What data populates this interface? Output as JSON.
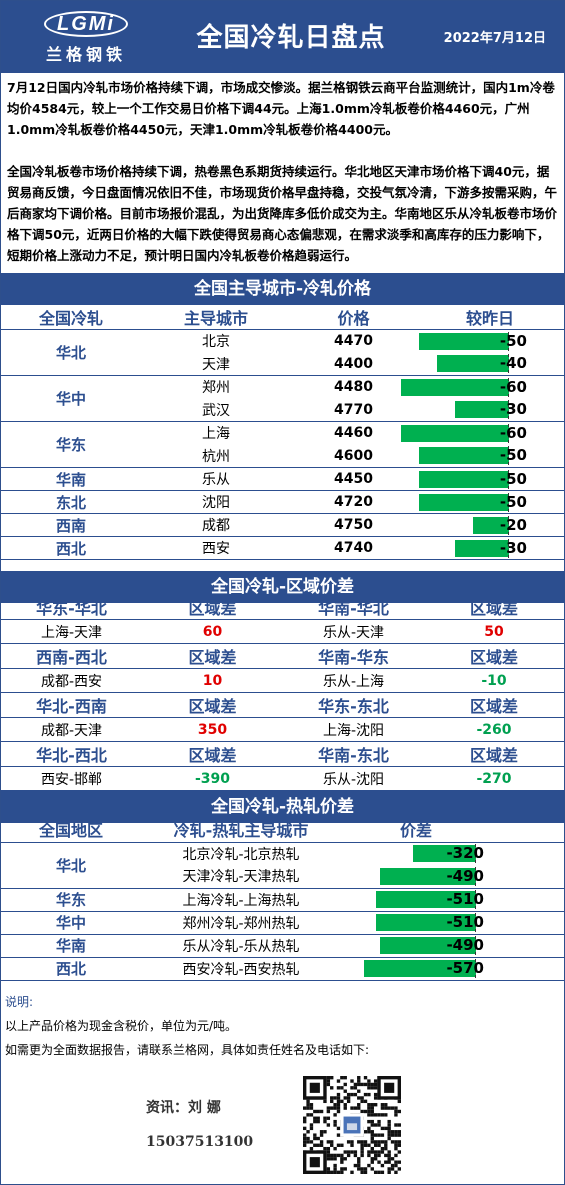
{
  "header": {
    "logo_text": "LGMi",
    "logo_cn": "兰格钢铁",
    "title": "全国冷轧日盘点",
    "date": "2022年7月12日"
  },
  "summary": {
    "p1": "7月12日国内冷轧市场价格持续下调，市场成交惨淡。据兰格钢铁云商平台监测统计，国内1m冷卷均价4584元，较上一个工作交易日价格下调44元。上海1.0mm冷轧板卷价格4460元，广州1.0mm冷轧板卷价格4450元，天津1.0mm冷轧板卷价格4400元。",
    "p2": "全国冷轧板卷市场价格持续下调，热卷黑色系期货持续运行。华北地区天津市场价格下调40元，据贸易商反馈，今日盘面情况依旧不佳，市场现货价格早盘持稳，交投气氛冷清，下游多按需采购，午后商家均下调价格。目前市场报价混乱，为出货降库多低价成交为主。华南地区乐从冷轧板卷市场价格下调50元，近两日价格的大幅下跌使得贸易商心态偏悲观，在需求淡季和高库存的压力影响下，短期价格上涨动力不足，预计明日国内冷轧板卷价格趋弱运行。"
  },
  "sections": {
    "city_price": "全国主导城市-冷轧价格",
    "spread": "全国冷轧-区域价差",
    "hot": "全国冷轧-热轧价差"
  },
  "city_table": {
    "headers": [
      "全国冷轧",
      "主导城市",
      "价格",
      "较昨日"
    ],
    "groups": [
      {
        "region": "华北",
        "rows": [
          {
            "city": "北京",
            "price": "4470",
            "change": -50
          },
          {
            "city": "天津",
            "price": "4400",
            "change": -40
          }
        ]
      },
      {
        "region": "华中",
        "rows": [
          {
            "city": "郑州",
            "price": "4480",
            "change": -60
          },
          {
            "city": "武汉",
            "price": "4770",
            "change": -30
          }
        ]
      },
      {
        "region": "华东",
        "rows": [
          {
            "city": "上海",
            "price": "4460",
            "change": -60
          },
          {
            "city": "杭州",
            "price": "4600",
            "change": -50
          }
        ]
      },
      {
        "region": "华南",
        "rows": [
          {
            "city": "乐从",
            "price": "4450",
            "change": -50
          }
        ]
      },
      {
        "region": "东北",
        "rows": [
          {
            "city": "沈阳",
            "price": "4720",
            "change": -50
          }
        ]
      },
      {
        "region": "西南",
        "rows": [
          {
            "city": "成都",
            "price": "4750",
            "change": -20
          }
        ]
      },
      {
        "region": "西北",
        "rows": [
          {
            "city": "西安",
            "price": "4740",
            "change": -30
          }
        ]
      }
    ]
  },
  "spread_table": {
    "diff_label": "区域差",
    "blocks": [
      {
        "left_title": "华东-华北",
        "left_pair": "上海-天津",
        "left_value": "60",
        "right_title": "华南-华北",
        "right_pair": "乐从-天津",
        "right_value": "50"
      },
      {
        "left_title": "西南-西北",
        "left_pair": "成都-西安",
        "left_value": "10",
        "right_title": "华南-华东",
        "right_pair": "乐从-上海",
        "right_value": "-10"
      },
      {
        "left_title": "华北-西南",
        "left_pair": "成都-天津",
        "left_value": "350",
        "right_title": "华东-东北",
        "right_pair": "上海-沈阳",
        "right_value": "-260"
      },
      {
        "left_title": "华北-西北",
        "left_pair": "西安-邯郸",
        "left_value": "-390",
        "right_title": "华南-东北",
        "right_pair": "乐从-沈阳",
        "right_value": "-270"
      }
    ]
  },
  "hot_table": {
    "headers": [
      "全国地区",
      "冷轧-热轧主导城市",
      "价差"
    ],
    "groups": [
      {
        "region": "华北",
        "rows": [
          {
            "pair": "北京冷轧-北京热轧",
            "value": -320
          },
          {
            "pair": "天津冷轧-天津热轧",
            "value": -490
          }
        ]
      },
      {
        "region": "华东",
        "rows": [
          {
            "pair": "上海冷轧-上海热轧",
            "value": -510
          }
        ]
      },
      {
        "region": "华中",
        "rows": [
          {
            "pair": "郑州冷轧-郑州热轧",
            "value": -510
          }
        ]
      },
      {
        "region": "华南",
        "rows": [
          {
            "pair": "乐从冷轧-乐从热轧",
            "value": -490
          }
        ]
      },
      {
        "region": "西北",
        "rows": [
          {
            "pair": "西安冷轧-西安热轧",
            "value": -570
          }
        ]
      }
    ]
  },
  "notes": {
    "label": "说明:",
    "line1": "以上产品价格为现金含税价，单位为元/吨。",
    "line2": "如需更为全面数据报告，请联系兰格网，具体如责任姓名及电话如下:"
  },
  "contact": {
    "name": "资讯：刘 娜",
    "phone": "15037513100"
  },
  "colors": {
    "primary": "#2c4e8f",
    "bar": "#00b050",
    "positive": "#e00000",
    "negative": "#00a050"
  }
}
